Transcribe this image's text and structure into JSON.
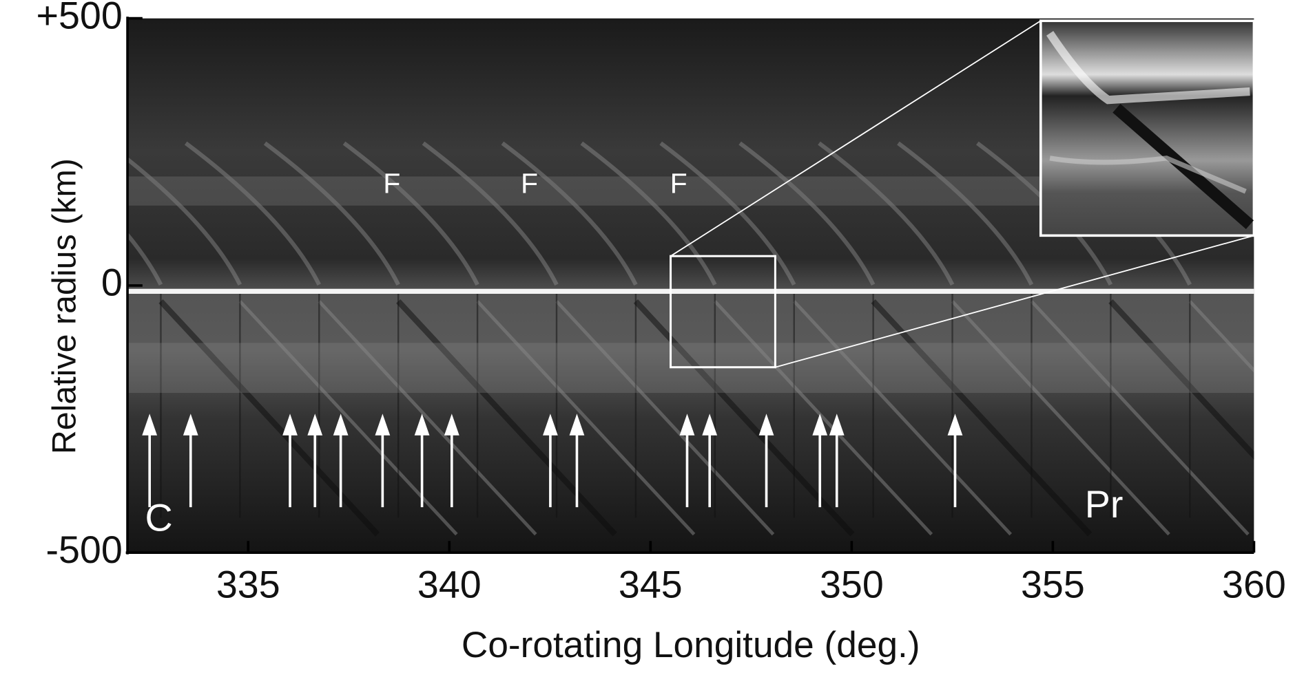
{
  "chart_data": {
    "type": "image",
    "xlabel": "Co-rotating Longitude (deg.)",
    "ylabel": "Relative radius (km)",
    "xlim": [
      332,
      360
    ],
    "ylim": [
      -500,
      500
    ],
    "xticks": [
      335,
      340,
      345,
      350,
      355,
      360
    ],
    "yticks": [
      {
        "value": 500,
        "label": "+500"
      },
      0,
      -500
    ],
    "arrows": {
      "x": [
        332.55,
        333.57,
        336.04,
        336.66,
        337.3,
        338.34,
        339.32,
        340.06,
        342.51,
        343.17,
        345.91,
        346.47,
        347.88,
        349.21,
        349.63,
        352.57
      ],
      "top": -240,
      "bottom": -415,
      "color": "#ffffff"
    },
    "labels": [
      {
        "text": "F",
        "x": 338.57,
        "y": 187
      },
      {
        "text": "F",
        "x": 341.99,
        "y": 187
      },
      {
        "text": "F",
        "x": 345.7,
        "y": 187
      },
      {
        "text": "C",
        "x": 332.78,
        "y": -440
      },
      {
        "text": "Pr",
        "x": 356.27,
        "y": -415
      }
    ],
    "zoom_box": {
      "xlim": [
        345.5,
        348.1
      ],
      "ylim": [
        -153,
        55
      ]
    }
  }
}
